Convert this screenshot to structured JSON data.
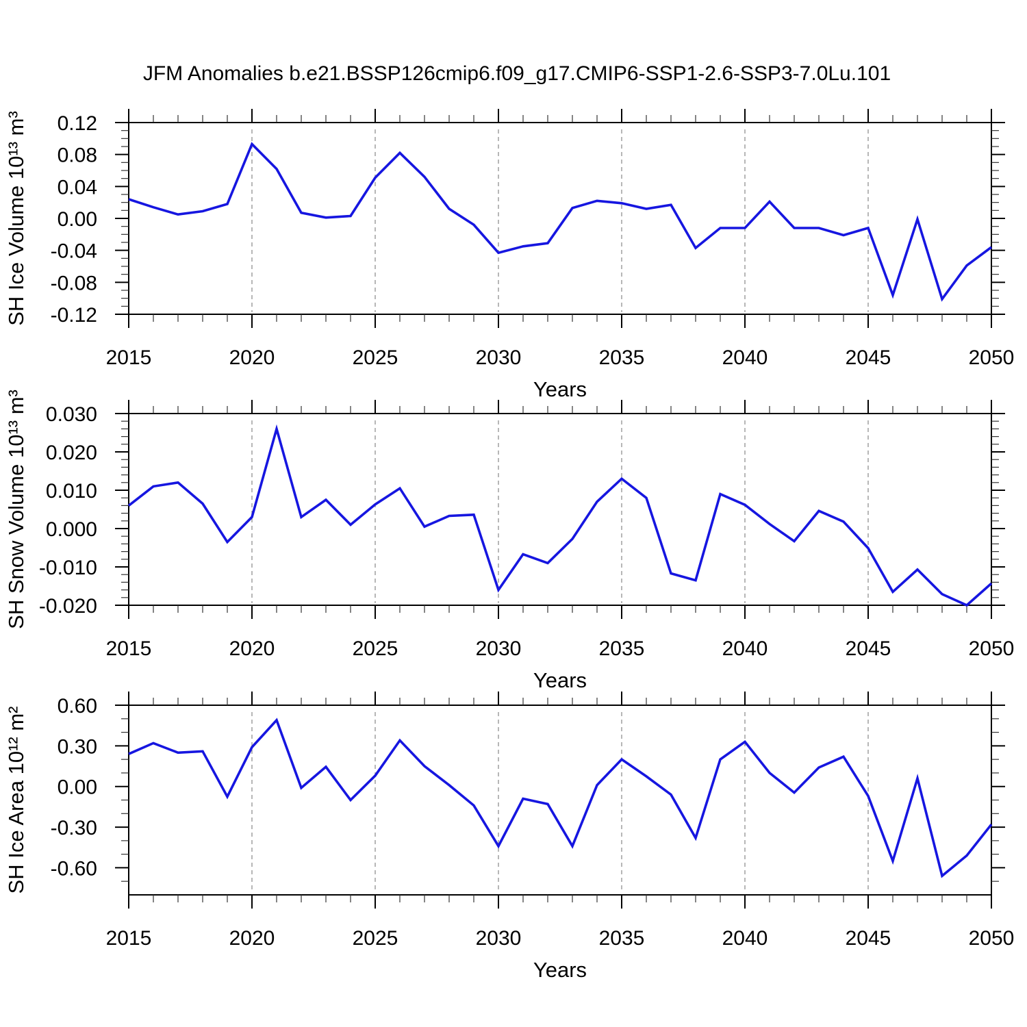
{
  "title": "JFM Anomalies b.e21.BSSP126cmip6.f09_g17.CMIP6-SSP1-2.6-SSP3-7.0Lu.101",
  "line_color": "#1616E0",
  "grid_color": "#909090",
  "axis_color": "#000000",
  "chart_data": [
    {
      "type": "line",
      "name": "sh-ice-volume",
      "xlabel": "Years",
      "ylabel": "SH Ice Volume 10¹³ m³",
      "x": [
        2015,
        2016,
        2017,
        2018,
        2019,
        2020,
        2021,
        2022,
        2023,
        2024,
        2025,
        2026,
        2027,
        2028,
        2029,
        2030,
        2031,
        2032,
        2033,
        2034,
        2035,
        2036,
        2037,
        2038,
        2039,
        2040,
        2041,
        2042,
        2043,
        2044,
        2045,
        2046,
        2047,
        2048,
        2049,
        2050
      ],
      "values": [
        0.024,
        0.014,
        0.005,
        0.009,
        0.018,
        0.093,
        0.062,
        0.007,
        0.001,
        0.003,
        0.051,
        0.082,
        0.052,
        0.012,
        -0.008,
        -0.043,
        -0.035,
        -0.031,
        0.013,
        0.022,
        0.019,
        0.012,
        0.017,
        -0.037,
        -0.012,
        -0.012,
        0.021,
        -0.012,
        -0.012,
        -0.021,
        -0.012,
        -0.096,
        -0.001,
        -0.101,
        -0.059,
        -0.036
      ],
      "xlim": [
        2015,
        2050
      ],
      "ylim": [
        -0.12,
        0.12
      ],
      "xticks": [
        2015,
        2020,
        2025,
        2030,
        2035,
        2040,
        2045,
        2050
      ],
      "xtick_labels": [
        "2015",
        "2020",
        "2025",
        "2030",
        "2035",
        "2040",
        "2045",
        "2050"
      ],
      "xminor_step": 1,
      "yticks": [
        0.12,
        0.08,
        0.04,
        0.0,
        -0.04,
        -0.08,
        -0.12
      ],
      "ytick_labels": [
        "0.12",
        "0.08",
        "0.04",
        "0.00",
        "-0.04",
        "-0.08",
        "-0.12"
      ],
      "yminor_step": 0.01,
      "gridlines_x": [
        2020,
        2025,
        2030,
        2035,
        2040,
        2045
      ],
      "grid_style": "dashed",
      "legend": "none"
    },
    {
      "type": "line",
      "name": "sh-snow-volume",
      "xlabel": "Years",
      "ylabel": "SH Snow Volume 10¹³ m³",
      "x": [
        2015,
        2016,
        2017,
        2018,
        2019,
        2020,
        2021,
        2022,
        2023,
        2024,
        2025,
        2026,
        2027,
        2028,
        2029,
        2030,
        2031,
        2032,
        2033,
        2034,
        2035,
        2036,
        2037,
        2038,
        2039,
        2040,
        2041,
        2042,
        2043,
        2044,
        2045,
        2046,
        2047,
        2048,
        2049,
        2050
      ],
      "values": [
        0.006,
        0.011,
        0.012,
        0.0065,
        -0.0035,
        0.003,
        0.026,
        0.003,
        0.0075,
        0.001,
        0.0063,
        0.0105,
        0.0005,
        0.0033,
        0.0036,
        -0.016,
        -0.0067,
        -0.009,
        -0.0027,
        0.007,
        0.013,
        0.008,
        -0.0117,
        -0.0135,
        0.009,
        0.0062,
        0.0012,
        -0.0033,
        0.0046,
        0.0018,
        -0.0051,
        -0.0165,
        -0.0107,
        -0.0171,
        -0.02,
        -0.0143
      ],
      "xlim": [
        2015,
        2050
      ],
      "ylim": [
        -0.02,
        0.03
      ],
      "xticks": [
        2015,
        2020,
        2025,
        2030,
        2035,
        2040,
        2045,
        2050
      ],
      "xtick_labels": [
        "2015",
        "2020",
        "2025",
        "2030",
        "2035",
        "2040",
        "2045",
        "2050"
      ],
      "xminor_step": 1,
      "yticks": [
        0.03,
        0.02,
        0.01,
        0.0,
        -0.01,
        -0.02
      ],
      "ytick_labels": [
        "0.030",
        "0.020",
        "0.010",
        "0.000",
        "-0.010",
        "-0.020"
      ],
      "yminor_step": 0.002,
      "gridlines_x": [
        2020,
        2025,
        2030,
        2035,
        2040,
        2045
      ],
      "grid_style": "dashed",
      "legend": "none"
    },
    {
      "type": "line",
      "name": "sh-ice-area",
      "xlabel": "Years",
      "ylabel": "SH Ice Area 10¹² m²",
      "x": [
        2015,
        2016,
        2017,
        2018,
        2019,
        2020,
        2021,
        2022,
        2023,
        2024,
        2025,
        2026,
        2027,
        2028,
        2029,
        2030,
        2031,
        2032,
        2033,
        2034,
        2035,
        2036,
        2037,
        2038,
        2039,
        2040,
        2041,
        2042,
        2043,
        2044,
        2045,
        2046,
        2047,
        2048,
        2049,
        2050
      ],
      "values": [
        0.24,
        0.32,
        0.25,
        0.26,
        -0.075,
        0.29,
        0.49,
        -0.01,
        0.145,
        -0.1,
        0.08,
        0.34,
        0.15,
        0.01,
        -0.14,
        -0.44,
        -0.09,
        -0.13,
        -0.44,
        0.01,
        0.2,
        0.075,
        -0.06,
        -0.38,
        0.2,
        0.33,
        0.1,
        -0.045,
        0.14,
        0.22,
        -0.07,
        -0.55,
        0.06,
        -0.66,
        -0.51,
        -0.28
      ],
      "xlim": [
        2015,
        2050
      ],
      "ylim": [
        -0.8,
        0.6
      ],
      "xticks": [
        2015,
        2020,
        2025,
        2030,
        2035,
        2040,
        2045,
        2050
      ],
      "xtick_labels": [
        "2015",
        "2020",
        "2025",
        "2030",
        "2035",
        "2040",
        "2045",
        "2050"
      ],
      "xminor_step": 1,
      "yticks": [
        0.6,
        0.3,
        0.0,
        -0.3,
        -0.6
      ],
      "ytick_labels": [
        "0.60",
        "0.30",
        "0.00",
        "-0.30",
        "-0.60"
      ],
      "yminor_step": 0.1,
      "gridlines_x": [
        2020,
        2025,
        2030,
        2035,
        2040,
        2045
      ],
      "grid_style": "dashed",
      "legend": "none"
    }
  ]
}
